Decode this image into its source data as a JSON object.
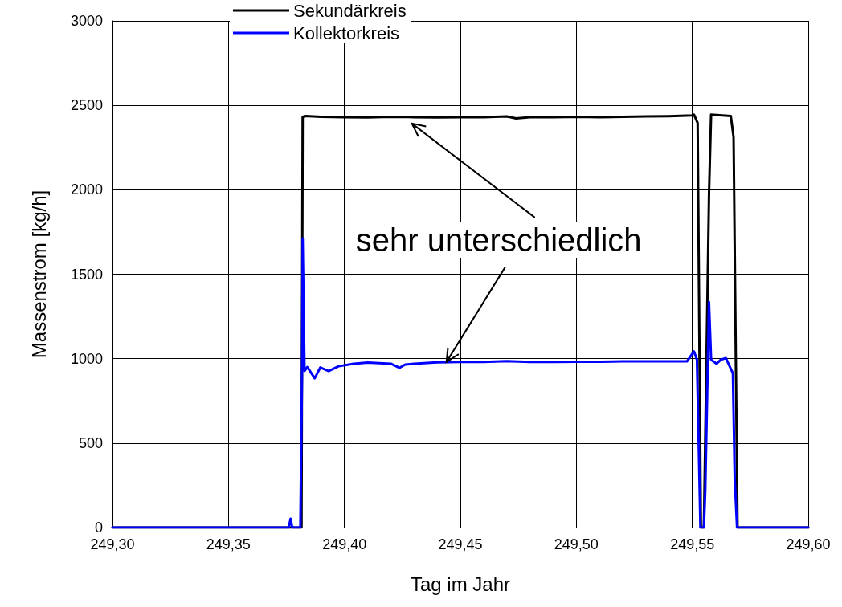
{
  "chart_data": {
    "type": "line",
    "xlabel": "Tag im Jahr",
    "ylabel": "Massenstrom [kg/h]",
    "xlim": [
      249.3,
      249.6
    ],
    "xticks": [
      {
        "value": 249.3,
        "label": "249,30"
      },
      {
        "value": 249.35,
        "label": "249,35"
      },
      {
        "value": 249.4,
        "label": "249,40"
      },
      {
        "value": 249.45,
        "label": "249,45"
      },
      {
        "value": 249.5,
        "label": "249,50"
      },
      {
        "value": 249.55,
        "label": "249,55"
      },
      {
        "value": 249.6,
        "label": "249,60"
      }
    ],
    "ylim": [
      0,
      3000
    ],
    "yticks": [
      0,
      500,
      1000,
      1500,
      2000,
      2500,
      3000
    ],
    "grid": true,
    "legend": "top",
    "marker": "none",
    "line_style": "solid",
    "annotations": [
      {
        "text": "sehr unterschiedlich",
        "x": 249.444,
        "y": 980
      }
    ],
    "series": [
      {
        "name": "Sekundärkreis",
        "color": "#000000",
        "x": [
          249.3,
          249.38,
          249.3815,
          249.382,
          249.383,
          249.39,
          249.4,
          249.41,
          249.42,
          249.43,
          249.44,
          249.45,
          249.46,
          249.47,
          249.474,
          249.48,
          249.49,
          249.5,
          249.51,
          249.52,
          249.53,
          249.54,
          249.55,
          249.5507,
          249.5523,
          249.5537,
          249.555,
          249.5572,
          249.5581,
          249.5666,
          249.5678,
          249.5695,
          249.58,
          249.6
        ],
        "values": [
          0,
          0,
          0,
          2430,
          2437,
          2432,
          2430,
          2428,
          2432,
          2430,
          2428,
          2430,
          2430,
          2434,
          2422,
          2430,
          2430,
          2432,
          2430,
          2432,
          2434,
          2436,
          2440,
          2445,
          2396,
          0,
          0,
          1970,
          2445,
          2437,
          2311,
          0,
          0,
          0
        ]
      },
      {
        "name": "Kollektorkreis",
        "color": "#0000ff",
        "x": [
          249.3,
          249.376,
          249.3768,
          249.3775,
          249.381,
          249.3818,
          249.382,
          249.3828,
          249.384,
          249.3872,
          249.3896,
          249.3932,
          249.3975,
          249.404,
          249.41,
          249.42,
          249.4238,
          249.4262,
          249.43,
          249.44,
          249.45,
          249.46,
          249.47,
          249.48,
          249.49,
          249.5,
          249.51,
          249.52,
          249.53,
          249.54,
          249.5477,
          249.5507,
          249.552,
          249.5535,
          249.555,
          249.5556,
          249.5572,
          249.5581,
          249.5605,
          249.5623,
          249.5645,
          249.5675,
          249.5683,
          249.5693,
          249.575,
          249.6
        ],
        "values": [
          0,
          0,
          52,
          0,
          0,
          1000,
          1712,
          927,
          950,
          884,
          948,
          927,
          955,
          970,
          977,
          970,
          946,
          965,
          970,
          978,
          980,
          980,
          985,
          980,
          980,
          982,
          982,
          984,
          984,
          984,
          984,
          1043,
          994,
          0,
          0,
          219,
          1336,
          994,
          970,
          994,
          1003,
          913,
          285,
          0,
          0,
          0
        ]
      }
    ]
  }
}
